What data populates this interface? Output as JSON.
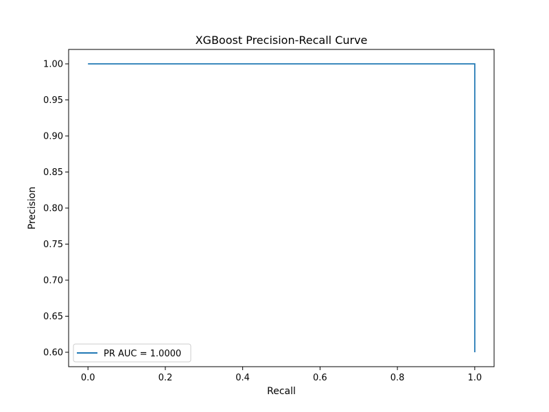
{
  "chart_data": {
    "type": "line",
    "title": "XGBoost Precision-Recall Curve",
    "xlabel": "Recall",
    "ylabel": "Precision",
    "xlim": [
      -0.05,
      1.05
    ],
    "ylim": [
      0.58,
      1.02
    ],
    "xticks": [
      0.0,
      0.2,
      0.4,
      0.6,
      0.8,
      1.0
    ],
    "xtick_labels": [
      "0.0",
      "0.2",
      "0.4",
      "0.6",
      "0.8",
      "1.0"
    ],
    "yticks": [
      0.6,
      0.65,
      0.7,
      0.75,
      0.8,
      0.85,
      0.9,
      0.95,
      1.0
    ],
    "ytick_labels": [
      "0.60",
      "0.65",
      "0.70",
      "0.75",
      "0.80",
      "0.85",
      "0.90",
      "0.95",
      "1.00"
    ],
    "grid": false,
    "legend_position": "lower-left",
    "series": [
      {
        "name": "PR AUC = 1.0000",
        "color": "#1f77b4",
        "x": [
          0.0,
          1.0,
          1.0
        ],
        "y": [
          1.0,
          1.0,
          0.6
        ]
      }
    ]
  }
}
